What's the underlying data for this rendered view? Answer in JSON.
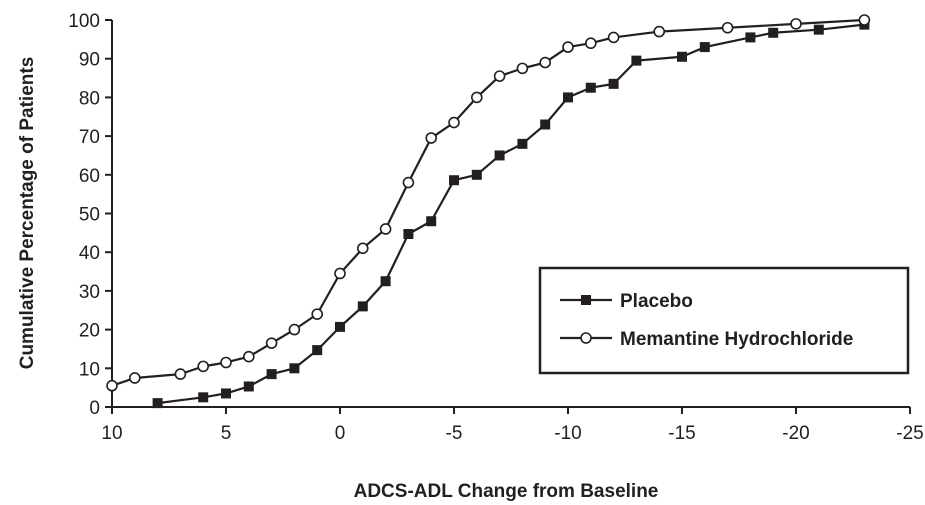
{
  "chart_data": {
    "type": "line",
    "xlabel": "ADCS-ADL Change from Baseline",
    "ylabel": "Cumulative Percentage of Patients",
    "xlim": [
      10,
      -25
    ],
    "ylim": [
      0,
      100
    ],
    "x_ticks": [
      10,
      5,
      0,
      -5,
      -10,
      -15,
      -20,
      -25
    ],
    "y_ticks": [
      0,
      10,
      20,
      30,
      40,
      50,
      60,
      70,
      80,
      90,
      100
    ],
    "legend_position": "center-right",
    "series": [
      {
        "name": "Placebo",
        "marker": "filled-square",
        "color": "#231f20",
        "x": [
          8,
          6,
          5,
          4,
          3,
          2,
          1,
          0,
          -1,
          -2,
          -3,
          -4,
          -5,
          -6,
          -7,
          -8,
          -9,
          -10,
          -11,
          -12,
          -13,
          -15,
          -16,
          -18,
          -19,
          -21,
          -23
        ],
        "y": [
          1,
          2.5,
          3.5,
          5.3,
          8.5,
          10,
          14.7,
          20.7,
          26,
          32.5,
          44.7,
          48,
          58.6,
          60,
          65,
          68,
          73,
          80,
          82.5,
          83.5,
          89.5,
          90.5,
          93,
          95.5,
          96.7,
          97.5,
          98.8
        ]
      },
      {
        "name": "Memantine Hydrochloride",
        "marker": "open-circle",
        "color": "#231f20",
        "x": [
          10,
          9,
          7,
          6,
          5,
          4,
          3,
          2,
          1,
          0,
          -1,
          -2,
          -3,
          -4,
          -5,
          -6,
          -7,
          -8,
          -9,
          -10,
          -11,
          -12,
          -14,
          -17,
          -20,
          -23
        ],
        "y": [
          5.5,
          7.5,
          8.5,
          10.5,
          11.5,
          13,
          16.5,
          20,
          24,
          34.5,
          41,
          46,
          58,
          69.5,
          73.5,
          80,
          85.5,
          87.5,
          89,
          93,
          94,
          95.5,
          97,
          98,
          99,
          100
        ]
      }
    ]
  }
}
